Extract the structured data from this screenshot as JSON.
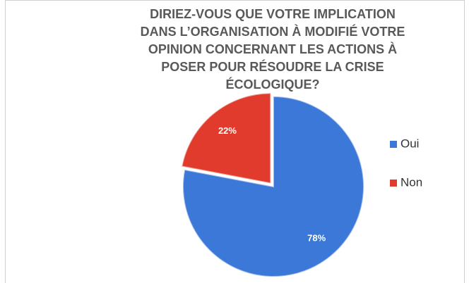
{
  "chart_data": {
    "type": "pie",
    "title": [
      "DIRIEZ-VOUS QUE VOTRE IMPLICATION",
      "DANS L’ORGANISATION À MODIFIÉ VOTRE",
      "OPINION CONCERNANT LES ACTIONS À",
      "POSER POUR RÉSOUDRE LA CRISE",
      "ÉCOLOGIQUE?"
    ],
    "categories": [
      "Oui",
      "Non"
    ],
    "values": [
      78,
      22
    ],
    "value_labels": [
      "78%",
      "22%"
    ],
    "colors": [
      "#3c78d8",
      "#e03b2c"
    ],
    "legend": "right"
  }
}
